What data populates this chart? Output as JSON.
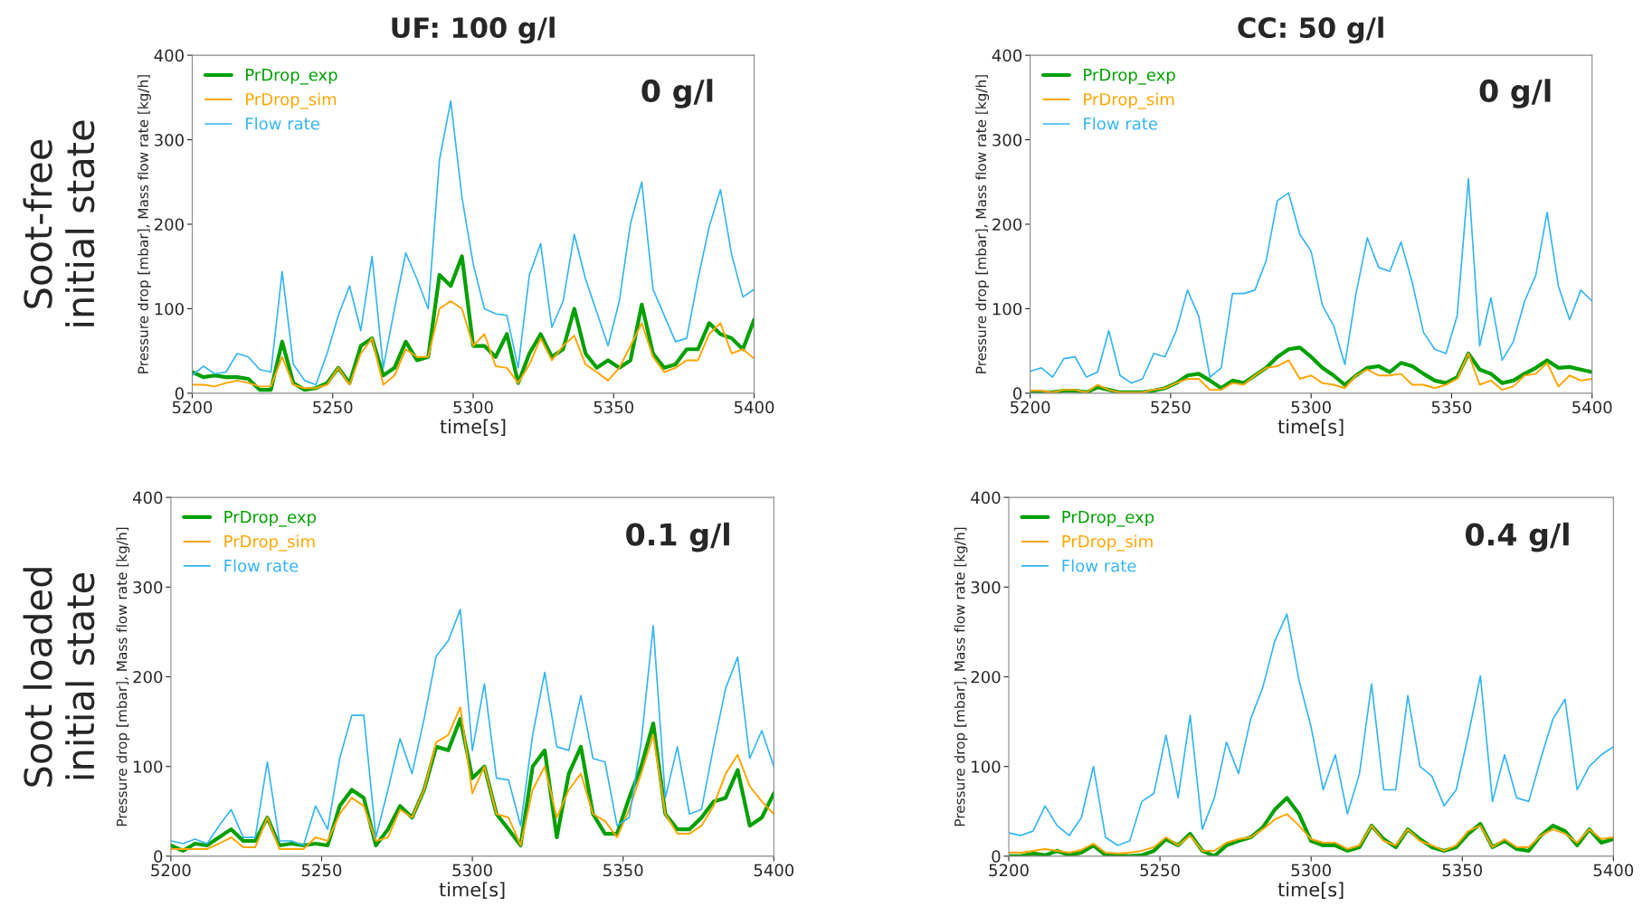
{
  "chart_data": [
    {
      "type": "line",
      "title": "UF: 100 g/l",
      "xlabel": "time[s]",
      "ylabel": "Pressure drop [mbar], Mass flow rate [kg/h]",
      "annotations": [
        "0 g/l",
        "Soot-free\ninitial state"
      ],
      "legend": "top left",
      "grid": false,
      "xlim": [
        5200,
        5400
      ],
      "ylim": [
        0,
        400
      ],
      "xticks": [
        5200,
        5250,
        5300,
        5350,
        5400
      ],
      "yticks": [
        0,
        100,
        200,
        300,
        400
      ],
      "x": [
        5200,
        5204,
        5208,
        5212,
        5216,
        5220,
        5224,
        5228,
        5232,
        5236,
        5240,
        5244,
        5248,
        5252,
        5256,
        5260,
        5264,
        5268,
        5272,
        5276,
        5280,
        5284,
        5288,
        5292,
        5296,
        5300,
        5304,
        5308,
        5312,
        5316,
        5320,
        5324,
        5328,
        5332,
        5336,
        5340,
        5344,
        5348,
        5352,
        5356,
        5360,
        5364,
        5368,
        5372,
        5376,
        5380,
        5384,
        5388,
        5392,
        5396,
        5400
      ],
      "series": [
        {
          "name": "PrDrop_exp",
          "color": "#00a000",
          "values": [
            25,
            19,
            21,
            19,
            19,
            17,
            4,
            4,
            61,
            12,
            4,
            6,
            12,
            30,
            12,
            56,
            65,
            21,
            30,
            61,
            39,
            43,
            140,
            127,
            162,
            56,
            56,
            43,
            70,
            12,
            47,
            70,
            43,
            52,
            100,
            47,
            30,
            39,
            30,
            39,
            105,
            47,
            30,
            34,
            52,
            52,
            83,
            70,
            65,
            52,
            87
          ]
        },
        {
          "name": "PrDrop_sim",
          "color": "#ffa500",
          "values": [
            10,
            10,
            8,
            12,
            15,
            12,
            8,
            8,
            43,
            10,
            6,
            6,
            10,
            30,
            10,
            47,
            65,
            10,
            21,
            52,
            43,
            43,
            100,
            109,
            100,
            56,
            70,
            32,
            30,
            12,
            34,
            65,
            39,
            56,
            68,
            34,
            25,
            15,
            30,
            56,
            83,
            43,
            25,
            30,
            39,
            39,
            70,
            83,
            47,
            52,
            41
          ]
        },
        {
          "name": "Flow rate",
          "color": "#33b5f0",
          "values": [
            21,
            32,
            23,
            25,
            47,
            43,
            28,
            25,
            144,
            34,
            15,
            10,
            47,
            92,
            127,
            74,
            162,
            30,
            100,
            166,
            135,
            100,
            276,
            346,
            232,
            153,
            100,
            94,
            92,
            30,
            140,
            177,
            78,
            109,
            188,
            135,
            96,
            56,
            109,
            201,
            250,
            123,
            92,
            61,
            65,
            135,
            197,
            241,
            164,
            114,
            123
          ]
        }
      ]
    },
    {
      "type": "line",
      "title": "CC: 50 g/l",
      "xlabel": "time[s]",
      "ylabel": "Pressure drop [mbar], Mass flow rate [kg/h]",
      "annotations": [
        "0 g/l"
      ],
      "legend": "top left",
      "grid": false,
      "xlim": [
        5200,
        5400
      ],
      "ylim": [
        0,
        400
      ],
      "xticks": [
        5200,
        5250,
        5300,
        5350,
        5400
      ],
      "yticks": [
        0,
        100,
        200,
        300,
        400
      ],
      "x": [
        5200,
        5204,
        5208,
        5212,
        5216,
        5220,
        5224,
        5228,
        5232,
        5236,
        5240,
        5244,
        5248,
        5252,
        5256,
        5260,
        5264,
        5268,
        5272,
        5276,
        5280,
        5284,
        5288,
        5292,
        5296,
        5300,
        5304,
        5308,
        5312,
        5316,
        5320,
        5324,
        5328,
        5332,
        5336,
        5340,
        5344,
        5348,
        5352,
        5356,
        5360,
        5364,
        5368,
        5372,
        5376,
        5380,
        5384,
        5388,
        5392,
        5396,
        5400
      ],
      "series": [
        {
          "name": "PrDrop_exp",
          "color": "#00a000",
          "values": [
            1,
            1,
            1,
            3,
            3,
            1,
            7,
            4,
            1,
            1,
            1,
            3,
            6,
            12,
            21,
            23,
            15,
            6,
            15,
            12,
            21,
            30,
            43,
            52,
            54,
            43,
            30,
            21,
            10,
            21,
            30,
            32,
            25,
            36,
            32,
            23,
            15,
            12,
            19,
            47,
            28,
            23,
            12,
            15,
            23,
            30,
            39,
            30,
            31,
            28,
            25
          ]
        },
        {
          "name": "PrDrop_sim",
          "color": "#ffa500",
          "values": [
            3,
            3,
            1,
            4,
            4,
            1,
            10,
            4,
            1,
            1,
            1,
            4,
            6,
            12,
            17,
            17,
            4,
            4,
            12,
            10,
            21,
            30,
            32,
            39,
            17,
            21,
            12,
            10,
            6,
            21,
            28,
            21,
            21,
            23,
            10,
            10,
            6,
            10,
            17,
            47,
            10,
            15,
            4,
            8,
            21,
            23,
            36,
            8,
            21,
            15,
            17
          ]
        },
        {
          "name": "Flow rate",
          "color": "#33b5f0",
          "values": [
            26,
            30,
            19,
            41,
            43,
            19,
            25,
            74,
            21,
            12,
            17,
            47,
            43,
            74,
            122,
            91,
            19,
            30,
            118,
            118,
            122,
            157,
            228,
            237,
            188,
            168,
            104,
            80,
            34,
            118,
            184,
            149,
            144,
            179,
            131,
            72,
            52,
            47,
            92,
            254,
            56,
            113,
            39,
            61,
            109,
            140,
            214,
            127,
            87,
            122,
            109
          ]
        }
      ]
    },
    {
      "type": "line",
      "xlabel": "time[s]",
      "ylabel": "Pressure drop [mbar], Mass flow rate [kg/h]",
      "annotations": [
        "0.1 g/l",
        "Soot loaded\ninitial state"
      ],
      "legend": "top left",
      "grid": false,
      "xlim": [
        5200,
        5400
      ],
      "ylim": [
        0,
        400
      ],
      "xticks": [
        5200,
        5250,
        5300,
        5350,
        5400
      ],
      "yticks": [
        0,
        100,
        200,
        300,
        400
      ],
      "x": [
        5200,
        5204,
        5208,
        5212,
        5216,
        5220,
        5224,
        5228,
        5232,
        5236,
        5240,
        5244,
        5248,
        5252,
        5256,
        5260,
        5264,
        5268,
        5272,
        5276,
        5280,
        5284,
        5288,
        5292,
        5296,
        5300,
        5304,
        5308,
        5312,
        5316,
        5320,
        5324,
        5328,
        5332,
        5336,
        5340,
        5344,
        5348,
        5352,
        5356,
        5360,
        5364,
        5368,
        5372,
        5376,
        5380,
        5384,
        5388,
        5392,
        5396,
        5400
      ],
      "series": [
        {
          "name": "PrDrop_exp",
          "color": "#00a000",
          "values": [
            12,
            6,
            14,
            12,
            21,
            30,
            17,
            17,
            43,
            12,
            14,
            12,
            14,
            12,
            56,
            74,
            65,
            12,
            30,
            56,
            43,
            74,
            122,
            118,
            153,
            87,
            100,
            47,
            30,
            12,
            100,
            118,
            21,
            92,
            122,
            47,
            25,
            25,
            65,
            100,
            148,
            47,
            30,
            30,
            43,
            61,
            65,
            96,
            34,
            43,
            70
          ]
        },
        {
          "name": "PrDrop_sim",
          "color": "#ffa500",
          "values": [
            8,
            8,
            8,
            8,
            14,
            21,
            10,
            10,
            43,
            8,
            8,
            8,
            21,
            17,
            47,
            65,
            56,
            17,
            21,
            52,
            43,
            74,
            127,
            135,
            166,
            70,
            100,
            47,
            43,
            12,
            74,
            100,
            43,
            74,
            92,
            47,
            39,
            21,
            52,
            92,
            135,
            47,
            25,
            25,
            34,
            56,
            92,
            113,
            78,
            61,
            47
          ]
        },
        {
          "name": "Flow rate",
          "color": "#33b5f0",
          "values": [
            17,
            14,
            19,
            14,
            34,
            52,
            21,
            21,
            105,
            17,
            17,
            12,
            56,
            30,
            109,
            157,
            157,
            21,
            74,
            131,
            92,
            153,
            223,
            240,
            275,
            118,
            192,
            87,
            85,
            34,
            135,
            205,
            122,
            118,
            179,
            109,
            105,
            34,
            43,
            127,
            257,
            65,
            122,
            47,
            52,
            122,
            187,
            222,
            109,
            140,
            100
          ]
        }
      ]
    },
    {
      "type": "line",
      "xlabel": "time[s]",
      "ylabel": "Pressure drop [mbar], Mass flow rate [kg/h]",
      "annotations": [
        "0.4 g/l"
      ],
      "legend": "top left",
      "grid": false,
      "xlim": [
        5200,
        5400
      ],
      "ylim": [
        0,
        400
      ],
      "xticks": [
        5200,
        5250,
        5300,
        5350,
        5400
      ],
      "yticks": [
        0,
        100,
        200,
        300,
        400
      ],
      "x": [
        5200,
        5204,
        5208,
        5212,
        5216,
        5220,
        5224,
        5228,
        5232,
        5236,
        5240,
        5244,
        5248,
        5252,
        5256,
        5260,
        5264,
        5268,
        5272,
        5276,
        5280,
        5284,
        5288,
        5292,
        5296,
        5300,
        5304,
        5308,
        5312,
        5316,
        5320,
        5324,
        5328,
        5332,
        5336,
        5340,
        5344,
        5348,
        5352,
        5356,
        5360,
        5364,
        5368,
        5372,
        5376,
        5380,
        5384,
        5388,
        5392,
        5396,
        5400
      ],
      "series": [
        {
          "name": "PrDrop_exp",
          "color": "#00a000",
          "values": [
            0,
            0,
            3,
            1,
            6,
            1,
            4,
            12,
            1,
            1,
            0,
            1,
            6,
            19,
            12,
            25,
            6,
            0,
            12,
            17,
            21,
            32,
            52,
            65,
            47,
            17,
            12,
            12,
            6,
            10,
            34,
            19,
            10,
            30,
            19,
            10,
            6,
            10,
            25,
            36,
            10,
            17,
            8,
            6,
            23,
            34,
            28,
            12,
            30,
            15,
            19
          ]
        },
        {
          "name": "PrDrop_sim",
          "color": "#ffa500",
          "values": [
            4,
            4,
            6,
            8,
            6,
            4,
            7,
            14,
            4,
            3,
            4,
            6,
            10,
            21,
            12,
            23,
            6,
            6,
            15,
            19,
            21,
            30,
            41,
            47,
            34,
            19,
            15,
            15,
            8,
            12,
            34,
            17,
            12,
            30,
            17,
            12,
            6,
            12,
            28,
            34,
            10,
            19,
            10,
            10,
            23,
            30,
            25,
            15,
            30,
            19,
            21
          ]
        },
        {
          "name": "Flow rate",
          "color": "#33b5f0",
          "values": [
            26,
            23,
            28,
            56,
            34,
            23,
            43,
            100,
            21,
            12,
            17,
            61,
            70,
            135,
            65,
            157,
            30,
            65,
            127,
            92,
            153,
            188,
            240,
            270,
            196,
            144,
            74,
            113,
            47,
            92,
            192,
            74,
            74,
            179,
            100,
            89,
            56,
            74,
            135,
            201,
            61,
            113,
            65,
            61,
            109,
            153,
            175,
            74,
            100,
            113,
            122
          ]
        }
      ]
    }
  ]
}
